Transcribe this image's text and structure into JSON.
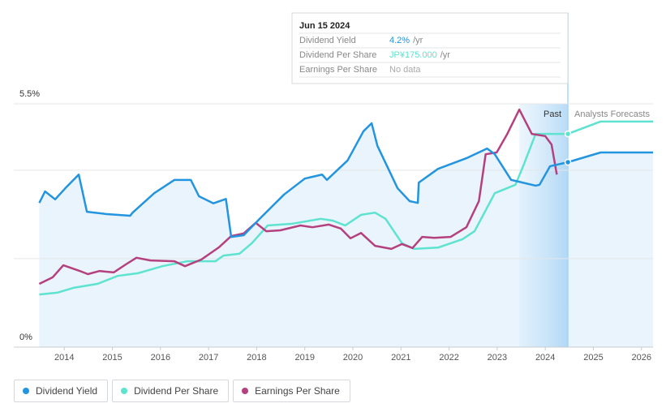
{
  "chart_data": {
    "type": "line",
    "xlim": [
      2012.95,
      2026.24
    ],
    "xticks": [
      2014,
      2015,
      2016,
      2017,
      2018,
      2019,
      2020,
      2021,
      2022,
      2023,
      2024,
      2025,
      2026
    ],
    "ylim": [
      0,
      5.5
    ],
    "yticks": [
      {
        "value": 0,
        "label": "0%"
      },
      {
        "value": 5.5,
        "label": "5.5%"
      }
    ],
    "gridlines": [
      2,
      4
    ],
    "past_region": {
      "label": "Past",
      "start": 2023.46,
      "end": 2024.47
    },
    "forecast_label": "Analysts Forecasts",
    "tooltip": {
      "date": "Jun 15 2024",
      "rows": [
        {
          "label": "Dividend Yield",
          "value": "4.2%",
          "unit": "/yr"
        },
        {
          "label": "Dividend Per Share",
          "value": "JP¥175.000",
          "unit": "/yr"
        },
        {
          "label": "Earnings Per Share",
          "value": "No data"
        }
      ]
    },
    "series": [
      {
        "name": "Dividend Yield",
        "color": "#2394df",
        "x": [
          2013.48,
          2013.6,
          2013.81,
          2014.02,
          2014.3,
          2014.47,
          2014.86,
          2015.37,
          2015.42,
          2015.87,
          2016.29,
          2016.63,
          2016.8,
          2017.1,
          2017.36,
          2017.47,
          2017.73,
          2018.06,
          2018.57,
          2019.0,
          2019.36,
          2019.46,
          2019.89,
          2020.22,
          2020.39,
          2020.51,
          2020.93,
          2021.18,
          2021.35,
          2021.37,
          2021.77,
          2022.36,
          2022.79,
          2022.95,
          2023.29,
          2023.8,
          2023.88,
          2024.1,
          2024.47,
          2025.15,
          2026.24
        ],
        "values": [
          3.26,
          3.52,
          3.34,
          3.59,
          3.9,
          3.06,
          3.01,
          2.97,
          3.04,
          3.48,
          3.78,
          3.78,
          3.41,
          3.25,
          3.35,
          2.49,
          2.53,
          2.9,
          3.45,
          3.81,
          3.9,
          3.78,
          4.22,
          4.88,
          5.06,
          4.55,
          3.59,
          3.3,
          3.26,
          3.72,
          4.03,
          4.27,
          4.49,
          4.36,
          3.78,
          3.65,
          3.67,
          4.09,
          4.18,
          4.4,
          4.4
        ]
      },
      {
        "name": "Dividend Per Share",
        "color": "#5de3cf",
        "x": [
          2013.48,
          2013.85,
          2014.19,
          2014.69,
          2015.11,
          2015.53,
          2016.04,
          2016.55,
          2017.14,
          2017.31,
          2017.64,
          2017.9,
          2018.23,
          2018.74,
          2019.33,
          2019.58,
          2019.84,
          2020.17,
          2020.46,
          2020.68,
          2021.02,
          2021.27,
          2021.77,
          2022.28,
          2022.53,
          2022.95,
          2023.38,
          2023.54,
          2023.8,
          2024.47,
          2025.15,
          2026.24
        ],
        "values": [
          1.19,
          1.23,
          1.34,
          1.43,
          1.61,
          1.67,
          1.83,
          1.94,
          1.94,
          2.07,
          2.11,
          2.35,
          2.75,
          2.79,
          2.9,
          2.86,
          2.75,
          2.99,
          3.04,
          2.9,
          2.35,
          2.22,
          2.25,
          2.44,
          2.62,
          3.48,
          3.67,
          4.09,
          4.82,
          4.82,
          5.1,
          5.1
        ]
      },
      {
        "name": "Earnings Per Share",
        "color": "#b5407f",
        "x": [
          2013.48,
          2013.76,
          2013.98,
          2014.35,
          2014.49,
          2014.73,
          2015.03,
          2015.28,
          2015.5,
          2015.79,
          2016.29,
          2016.51,
          2016.85,
          2017.22,
          2017.47,
          2017.73,
          2017.98,
          2018.2,
          2018.49,
          2018.91,
          2019.16,
          2019.5,
          2019.75,
          2019.95,
          2020.17,
          2020.46,
          2020.8,
          2021.02,
          2021.24,
          2021.44,
          2021.69,
          2022.03,
          2022.36,
          2022.62,
          2022.76,
          2022.99,
          2023.21,
          2023.46,
          2023.72,
          2024.0,
          2024.13,
          2024.24
        ],
        "values": [
          1.43,
          1.58,
          1.85,
          1.71,
          1.65,
          1.72,
          1.69,
          1.87,
          2.02,
          1.96,
          1.94,
          1.83,
          1.98,
          2.26,
          2.51,
          2.57,
          2.81,
          2.62,
          2.64,
          2.75,
          2.71,
          2.77,
          2.68,
          2.46,
          2.58,
          2.29,
          2.22,
          2.33,
          2.24,
          2.49,
          2.47,
          2.49,
          2.71,
          3.3,
          4.36,
          4.4,
          4.82,
          5.37,
          4.82,
          4.77,
          4.58,
          3.9
        ]
      }
    ]
  }
}
